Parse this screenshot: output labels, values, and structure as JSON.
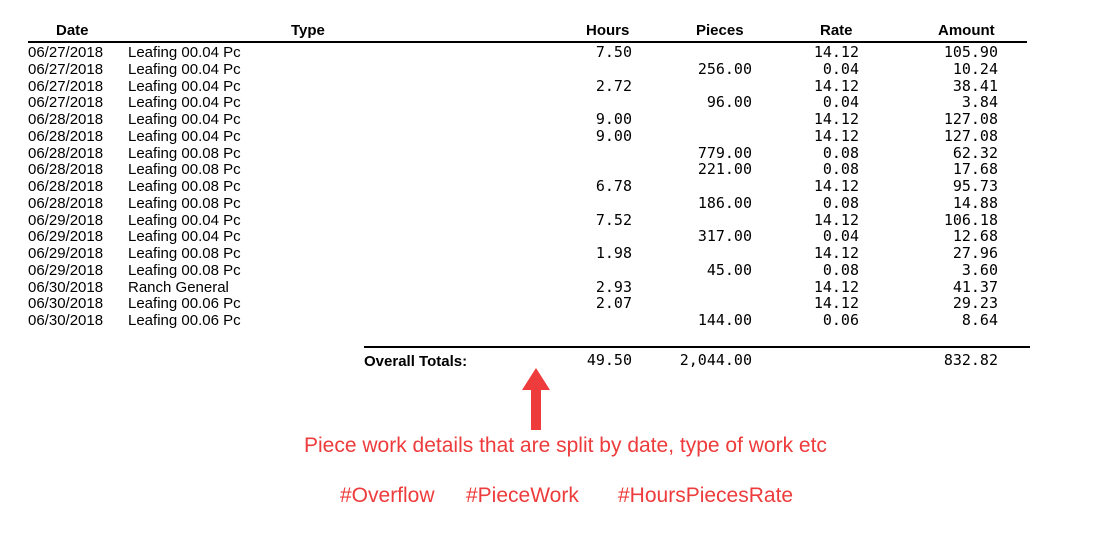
{
  "headers": {
    "date": "Date",
    "type": "Type",
    "hours": "Hours",
    "pieces": "Pieces",
    "rate": "Rate",
    "amount": "Amount"
  },
  "rows": [
    {
      "date": "06/27/2018",
      "type": "Leafing 00.04 Pc",
      "hours": "7.50",
      "pieces": "",
      "rate": "14.12",
      "amount": "105.90"
    },
    {
      "date": "06/27/2018",
      "type": "Leafing 00.04 Pc",
      "hours": "",
      "pieces": "256.00",
      "rate": "0.04",
      "amount": "10.24"
    },
    {
      "date": "06/27/2018",
      "type": "Leafing 00.04 Pc",
      "hours": "2.72",
      "pieces": "",
      "rate": "14.12",
      "amount": "38.41"
    },
    {
      "date": "06/27/2018",
      "type": "Leafing 00.04 Pc",
      "hours": "",
      "pieces": "96.00",
      "rate": "0.04",
      "amount": "3.84"
    },
    {
      "date": "06/28/2018",
      "type": "Leafing 00.04 Pc",
      "hours": "9.00",
      "pieces": "",
      "rate": "14.12",
      "amount": "127.08"
    },
    {
      "date": "06/28/2018",
      "type": "Leafing 00.04 Pc",
      "hours": "9.00",
      "pieces": "",
      "rate": "14.12",
      "amount": "127.08"
    },
    {
      "date": "06/28/2018",
      "type": "Leafing 00.08 Pc",
      "hours": "",
      "pieces": "779.00",
      "rate": "0.08",
      "amount": "62.32"
    },
    {
      "date": "06/28/2018",
      "type": "Leafing 00.08 Pc",
      "hours": "",
      "pieces": "221.00",
      "rate": "0.08",
      "amount": "17.68"
    },
    {
      "date": "06/28/2018",
      "type": "Leafing 00.08 Pc",
      "hours": "6.78",
      "pieces": "",
      "rate": "14.12",
      "amount": "95.73"
    },
    {
      "date": "06/28/2018",
      "type": "Leafing 00.08 Pc",
      "hours": "",
      "pieces": "186.00",
      "rate": "0.08",
      "amount": "14.88"
    },
    {
      "date": "06/29/2018",
      "type": "Leafing 00.04 Pc",
      "hours": "7.52",
      "pieces": "",
      "rate": "14.12",
      "amount": "106.18"
    },
    {
      "date": "06/29/2018",
      "type": "Leafing 00.04 Pc",
      "hours": "",
      "pieces": "317.00",
      "rate": "0.04",
      "amount": "12.68"
    },
    {
      "date": "06/29/2018",
      "type": "Leafing 00.08 Pc",
      "hours": "1.98",
      "pieces": "",
      "rate": "14.12",
      "amount": "27.96"
    },
    {
      "date": "06/29/2018",
      "type": "Leafing 00.08 Pc",
      "hours": "",
      "pieces": "45.00",
      "rate": "0.08",
      "amount": "3.60"
    },
    {
      "date": "06/30/2018",
      "type": "Ranch General",
      "hours": "2.93",
      "pieces": "",
      "rate": "14.12",
      "amount": "41.37"
    },
    {
      "date": "06/30/2018",
      "type": "Leafing 00.06 Pc",
      "hours": "2.07",
      "pieces": "",
      "rate": "14.12",
      "amount": "29.23"
    },
    {
      "date": "06/30/2018",
      "type": "Leafing 00.06 Pc",
      "hours": "",
      "pieces": "144.00",
      "rate": "0.06",
      "amount": "8.64"
    }
  ],
  "totals": {
    "label": "Overall  Totals:",
    "hours": "49.50",
    "pieces": "2,044.00",
    "amount": "832.82"
  },
  "annotation": {
    "caption": "Piece work details that are split by date, type of work etc",
    "tags": [
      "#Overflow",
      "#PieceWork",
      "#HoursPiecesRate"
    ],
    "color": "#ee3b3b"
  }
}
